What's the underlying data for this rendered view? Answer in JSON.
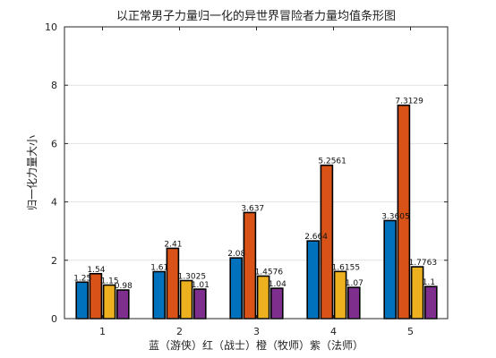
{
  "chart_data": {
    "type": "bar",
    "title": "以正常男子力量归一化的异世界冒险者力量均值条形图",
    "xlabel": "蓝（游侠）红（战士）橙（牧师）紫（法师）",
    "ylabel": "归一化力量大小",
    "categories": [
      "1",
      "2",
      "3",
      "4",
      "5"
    ],
    "ylim": [
      0,
      10
    ],
    "yticks": [
      "0",
      "2",
      "4",
      "6",
      "8",
      "10"
    ],
    "grid": true,
    "series": [
      {
        "color": "#0072BD",
        "values": [
          1.25,
          1.61,
          2.08,
          2.664,
          3.3605
        ],
        "labels": [
          "1.25",
          "1.61",
          "2.08",
          "2.664",
          "3.3605"
        ]
      },
      {
        "color": "#D95319",
        "values": [
          1.54,
          2.41,
          3.637,
          5.2561,
          7.3129
        ],
        "labels": [
          "1.54",
          "2.41",
          "3.637",
          "5.2561",
          "7.3129"
        ]
      },
      {
        "color": "#EDB120",
        "values": [
          1.15,
          1.3025,
          1.4576,
          1.6155,
          1.7763
        ],
        "labels": [
          "1.15",
          "1.3025",
          "1.4576",
          "1.6155",
          "1.7763"
        ]
      },
      {
        "color": "#7E2F8E",
        "values": [
          0.98,
          1.01,
          1.04,
          1.07,
          1.1
        ],
        "labels": [
          "0.98",
          "1.01",
          "1.04",
          "1.07",
          "1.1"
        ]
      }
    ]
  }
}
